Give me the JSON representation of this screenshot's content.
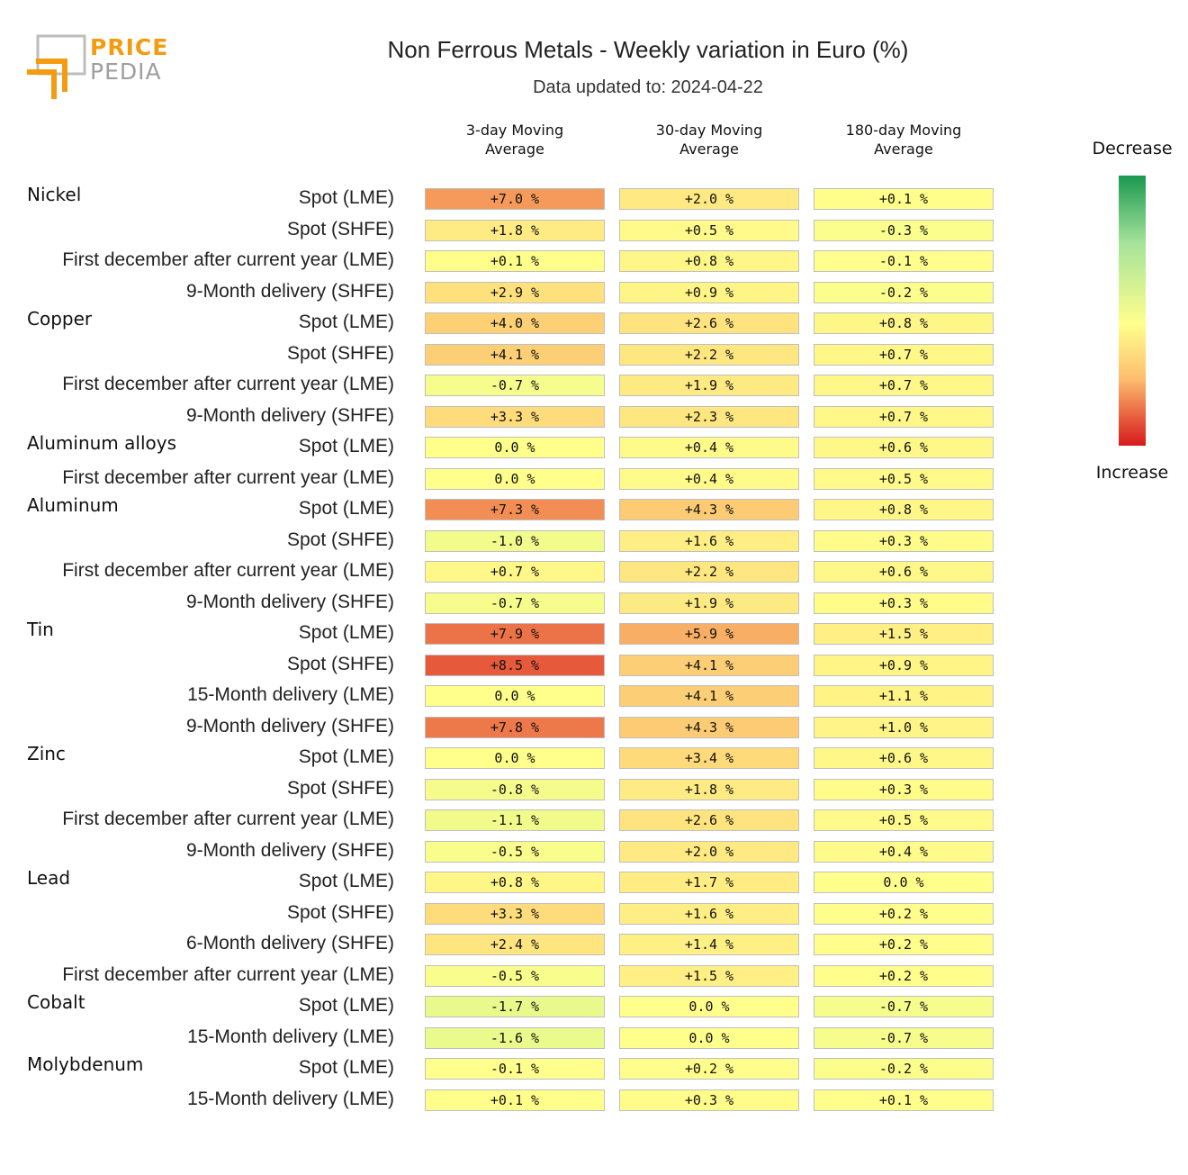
{
  "logo": {
    "line1": "PRICE",
    "line2": "PEDIA"
  },
  "title": "Non Ferrous Metals - Weekly variation in Euro (%)",
  "subtitle": "Data updated to: 2024-04-22",
  "legend": {
    "top_label": "Decrease",
    "bottom_label": "Increase"
  },
  "colors": {
    "max_increase": "#d7191c",
    "neutral": "#ffff8c",
    "max_decrease": "#1a9850"
  },
  "chart_data": {
    "type": "table",
    "title": "Non Ferrous Metals - Weekly variation in Euro (%)",
    "columns": [
      "3-day Moving Average",
      "30-day Moving Average",
      "180-day Moving Average"
    ],
    "column_headers": [
      [
        "3-day Moving",
        "Average"
      ],
      [
        "30-day Moving",
        "Average"
      ],
      [
        "180-day Moving",
        "Average"
      ]
    ],
    "groups": [
      {
        "name": "Nickel",
        "rows": [
          {
            "label": "Spot (LME)",
            "values": [
              7.0,
              2.0,
              0.1
            ],
            "text": [
              "+7.0 %",
              "+2.0 %",
              "+0.1 %"
            ]
          },
          {
            "label": "Spot (SHFE)",
            "values": [
              1.8,
              0.5,
              -0.3
            ],
            "text": [
              "+1.8 %",
              "+0.5 %",
              "-0.3 %"
            ]
          },
          {
            "label": "First december after current year (LME)",
            "values": [
              0.1,
              0.8,
              -0.1
            ],
            "text": [
              "+0.1 %",
              "+0.8 %",
              "-0.1 %"
            ]
          },
          {
            "label": "9-Month delivery (SHFE)",
            "values": [
              2.9,
              0.9,
              -0.2
            ],
            "text": [
              "+2.9 %",
              "+0.9 %",
              "-0.2 %"
            ]
          }
        ]
      },
      {
        "name": "Copper",
        "rows": [
          {
            "label": "Spot (LME)",
            "values": [
              4.0,
              2.6,
              0.8
            ],
            "text": [
              "+4.0 %",
              "+2.6 %",
              "+0.8 %"
            ]
          },
          {
            "label": "Spot (SHFE)",
            "values": [
              4.1,
              2.2,
              0.7
            ],
            "text": [
              "+4.1 %",
              "+2.2 %",
              "+0.7 %"
            ]
          },
          {
            "label": "First december after current year (LME)",
            "values": [
              -0.7,
              1.9,
              0.7
            ],
            "text": [
              "-0.7 %",
              "+1.9 %",
              "+0.7 %"
            ]
          },
          {
            "label": "9-Month delivery (SHFE)",
            "values": [
              3.3,
              2.3,
              0.7
            ],
            "text": [
              "+3.3 %",
              "+2.3 %",
              "+0.7 %"
            ]
          }
        ]
      },
      {
        "name": "Aluminum alloys",
        "rows": [
          {
            "label": "Spot (LME)",
            "values": [
              0.0,
              0.4,
              0.6
            ],
            "text": [
              "0.0 %",
              "+0.4 %",
              "+0.6 %"
            ]
          },
          {
            "label": "First december after current year (LME)",
            "values": [
              0.0,
              0.4,
              0.5
            ],
            "text": [
              "0.0 %",
              "+0.4 %",
              "+0.5 %"
            ]
          }
        ]
      },
      {
        "name": "Aluminum",
        "rows": [
          {
            "label": "Spot (LME)",
            "values": [
              7.3,
              4.3,
              0.8
            ],
            "text": [
              "+7.3 %",
              "+4.3 %",
              "+0.8 %"
            ]
          },
          {
            "label": "Spot (SHFE)",
            "values": [
              -1.0,
              1.6,
              0.3
            ],
            "text": [
              "-1.0 %",
              "+1.6 %",
              "+0.3 %"
            ]
          },
          {
            "label": "First december after current year (LME)",
            "values": [
              0.7,
              2.2,
              0.6
            ],
            "text": [
              "+0.7 %",
              "+2.2 %",
              "+0.6 %"
            ]
          },
          {
            "label": "9-Month delivery (SHFE)",
            "values": [
              -0.7,
              1.9,
              0.3
            ],
            "text": [
              "-0.7 %",
              "+1.9 %",
              "+0.3 %"
            ]
          }
        ]
      },
      {
        "name": "Tin",
        "rows": [
          {
            "label": "Spot (LME)",
            "values": [
              7.9,
              5.9,
              1.5
            ],
            "text": [
              "+7.9 %",
              "+5.9 %",
              "+1.5 %"
            ]
          },
          {
            "label": "Spot (SHFE)",
            "values": [
              8.5,
              4.1,
              0.9
            ],
            "text": [
              "+8.5 %",
              "+4.1 %",
              "+0.9 %"
            ]
          },
          {
            "label": "15-Month delivery (LME)",
            "values": [
              0.0,
              4.1,
              1.1
            ],
            "text": [
              "0.0 %",
              "+4.1 %",
              "+1.1 %"
            ]
          },
          {
            "label": "9-Month delivery (SHFE)",
            "values": [
              7.8,
              4.3,
              1.0
            ],
            "text": [
              "+7.8 %",
              "+4.3 %",
              "+1.0 %"
            ]
          }
        ]
      },
      {
        "name": "Zinc",
        "rows": [
          {
            "label": "Spot (LME)",
            "values": [
              0.0,
              3.4,
              0.6
            ],
            "text": [
              "0.0 %",
              "+3.4 %",
              "+0.6 %"
            ]
          },
          {
            "label": "Spot (SHFE)",
            "values": [
              -0.8,
              1.8,
              0.3
            ],
            "text": [
              "-0.8 %",
              "+1.8 %",
              "+0.3 %"
            ]
          },
          {
            "label": "First december after current year (LME)",
            "values": [
              -1.1,
              2.6,
              0.5
            ],
            "text": [
              "-1.1 %",
              "+2.6 %",
              "+0.5 %"
            ]
          },
          {
            "label": "9-Month delivery (SHFE)",
            "values": [
              -0.5,
              2.0,
              0.4
            ],
            "text": [
              "-0.5 %",
              "+2.0 %",
              "+0.4 %"
            ]
          }
        ]
      },
      {
        "name": "Lead",
        "rows": [
          {
            "label": "Spot (LME)",
            "values": [
              0.8,
              1.7,
              0.0
            ],
            "text": [
              "+0.8 %",
              "+1.7 %",
              "0.0 %"
            ]
          },
          {
            "label": "Spot (SHFE)",
            "values": [
              3.3,
              1.6,
              0.2
            ],
            "text": [
              "+3.3 %",
              "+1.6 %",
              "+0.2 %"
            ]
          },
          {
            "label": "6-Month delivery (SHFE)",
            "values": [
              2.4,
              1.4,
              0.2
            ],
            "text": [
              "+2.4 %",
              "+1.4 %",
              "+0.2 %"
            ]
          },
          {
            "label": "First december after current year (LME)",
            "values": [
              -0.5,
              1.5,
              0.2
            ],
            "text": [
              "-0.5 %",
              "+1.5 %",
              "+0.2 %"
            ]
          }
        ]
      },
      {
        "name": "Cobalt",
        "rows": [
          {
            "label": "Spot (LME)",
            "values": [
              -1.7,
              0.0,
              -0.7
            ],
            "text": [
              "-1.7 %",
              "0.0 %",
              "-0.7 %"
            ]
          },
          {
            "label": "15-Month delivery (LME)",
            "values": [
              -1.6,
              0.0,
              -0.7
            ],
            "text": [
              "-1.6 %",
              "0.0 %",
              "-0.7 %"
            ]
          }
        ]
      },
      {
        "name": "Molybdenum",
        "rows": [
          {
            "label": "Spot (LME)",
            "values": [
              -0.1,
              0.2,
              -0.2
            ],
            "text": [
              "-0.1 %",
              "+0.2 %",
              "-0.2 %"
            ]
          },
          {
            "label": "15-Month delivery (LME)",
            "values": [
              0.1,
              0.3,
              0.1
            ],
            "text": [
              "+0.1 %",
              "+0.3 %",
              "+0.1 %"
            ]
          }
        ]
      }
    ],
    "color_scale": {
      "min": -10,
      "max": 10,
      "low_label": "Decrease",
      "high_label": "Increase"
    }
  }
}
